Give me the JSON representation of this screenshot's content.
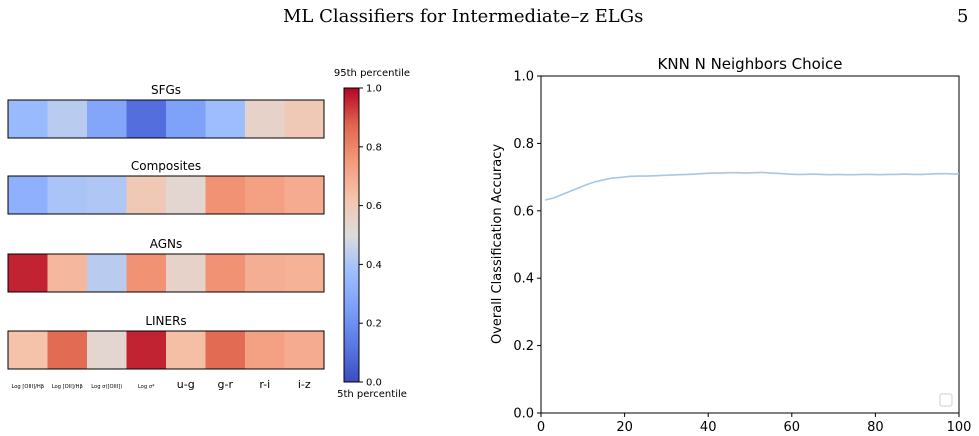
{
  "header": {
    "running_title": "ML Classifiers for Intermediate–z ELGs",
    "page_number": "5"
  },
  "heatmap_figure": {
    "panels": [
      {
        "title": "SFGs",
        "values": [
          0.36,
          0.43,
          0.28,
          0.1,
          0.26,
          0.37,
          0.55,
          0.6
        ]
      },
      {
        "title": "Composites",
        "values": [
          0.32,
          0.4,
          0.41,
          0.6,
          0.53,
          0.77,
          0.73,
          0.7
        ]
      },
      {
        "title": "AGNs",
        "values": [
          0.96,
          0.66,
          0.43,
          0.77,
          0.55,
          0.77,
          0.69,
          0.68
        ]
      },
      {
        "title": "LINERs",
        "values": [
          0.63,
          0.86,
          0.53,
          0.96,
          0.64,
          0.86,
          0.73,
          0.7
        ]
      }
    ],
    "features": [
      "Log [OIII]/Hβ",
      "Log [OII]/Hβ",
      "Log σ([OIII])",
      "Log σ*",
      "u-g",
      "g-r",
      "r-i",
      "i-z"
    ],
    "colorbar": {
      "top_label": "95th percentile",
      "bottom_label": "5th percentile",
      "ticks": [
        "0.0",
        "0.2",
        "0.4",
        "0.6",
        "0.8",
        "1.0"
      ]
    }
  },
  "chart_data": {
    "type": "line",
    "title": "KNN N Neighbors Choice",
    "xlabel": "",
    "ylabel": "Overall Classification Accuracy",
    "xlim": [
      0,
      100
    ],
    "ylim": [
      0.0,
      1.0
    ],
    "xticks": [
      "0",
      "20",
      "40",
      "60",
      "80",
      "100"
    ],
    "yticks": [
      "0.0",
      "0.2",
      "0.4",
      "0.6",
      "0.8",
      "1.0"
    ],
    "grid": false,
    "legend": "bottom-right",
    "color": "#a6c8e0",
    "series": [
      {
        "x": [
          1,
          3,
          5,
          7,
          9,
          11,
          13,
          15,
          17,
          19,
          21,
          23,
          25,
          27,
          29,
          31,
          33,
          35,
          37,
          39,
          41,
          43,
          45,
          47,
          49,
          51,
          53,
          55,
          57,
          59,
          61,
          63,
          65,
          67,
          69,
          71,
          73,
          75,
          77,
          79,
          81,
          83,
          85,
          87,
          89,
          91,
          93,
          95,
          97,
          99,
          100
        ],
        "values": [
          0.632,
          0.638,
          0.648,
          0.658,
          0.668,
          0.678,
          0.686,
          0.692,
          0.697,
          0.699,
          0.702,
          0.703,
          0.703,
          0.704,
          0.705,
          0.706,
          0.707,
          0.708,
          0.709,
          0.711,
          0.712,
          0.712,
          0.713,
          0.713,
          0.712,
          0.713,
          0.714,
          0.712,
          0.711,
          0.709,
          0.708,
          0.708,
          0.709,
          0.708,
          0.707,
          0.708,
          0.707,
          0.707,
          0.708,
          0.708,
          0.707,
          0.708,
          0.708,
          0.709,
          0.708,
          0.708,
          0.709,
          0.71,
          0.71,
          0.709,
          0.71
        ]
      }
    ]
  }
}
